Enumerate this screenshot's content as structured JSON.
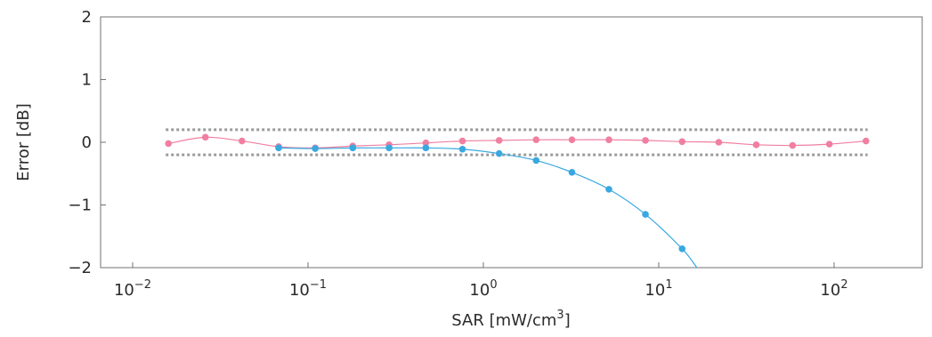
{
  "chart_data": {
    "type": "line",
    "title": "",
    "xlabel": "SAR [mW/cm³]",
    "xlabel_parts": {
      "base": "SAR [mW/cm",
      "sup": "3",
      "tail": "]"
    },
    "ylabel": "Error [dB]",
    "x_scale": "log",
    "xlim": [
      0.005,
      400
    ],
    "ylim": [
      -2,
      2
    ],
    "x_ticks": [
      {
        "value": 0.01,
        "base": "10",
        "exp": "−2"
      },
      {
        "value": 0.1,
        "base": "10",
        "exp": "−1"
      },
      {
        "value": 1,
        "base": "10",
        "exp": "0"
      },
      {
        "value": 10,
        "base": "10",
        "exp": "1"
      },
      {
        "value": 100,
        "base": "10",
        "exp": "2"
      }
    ],
    "y_ticks": [
      {
        "value": 2,
        "label": "2"
      },
      {
        "value": 1,
        "label": "1"
      },
      {
        "value": 0,
        "label": "0"
      },
      {
        "value": -1,
        "label": "−1"
      },
      {
        "value": -2,
        "label": "−2"
      }
    ],
    "grid": false,
    "legend": "none",
    "reference_lines": [
      {
        "y": 0.2,
        "style": "dotted",
        "x_range": [
          0.016,
          150
        ],
        "color": "#9a9a9a"
      },
      {
        "y": -0.2,
        "style": "dotted",
        "x_range": [
          0.016,
          150
        ],
        "color": "#9a9a9a"
      }
    ],
    "series": [
      {
        "color": "#f07fa0",
        "x": [
          0.016,
          0.026,
          0.042,
          0.068,
          0.11,
          0.18,
          0.29,
          0.47,
          0.76,
          1.23,
          2.0,
          3.2,
          5.2,
          8.4,
          13.6,
          22,
          36,
          58,
          94,
          152
        ],
        "y": [
          -0.02,
          0.08,
          0.02,
          -0.07,
          -0.09,
          -0.06,
          -0.04,
          -0.01,
          0.02,
          0.03,
          0.04,
          0.04,
          0.04,
          0.03,
          0.01,
          0.0,
          -0.04,
          -0.05,
          -0.03,
          0.02
        ]
      },
      {
        "color": "#3aa8e0",
        "x": [
          0.068,
          0.11,
          0.18,
          0.29,
          0.47,
          0.76,
          1.23,
          2.0,
          3.2,
          5.2,
          8.4,
          13.6
        ],
        "y": [
          -0.09,
          -0.1,
          -0.09,
          -0.09,
          -0.09,
          -0.11,
          -0.18,
          -0.29,
          -0.48,
          -0.75,
          -1.15,
          -1.7
        ],
        "line_end": {
          "x": 16.5,
          "y": -2.0
        }
      }
    ]
  }
}
